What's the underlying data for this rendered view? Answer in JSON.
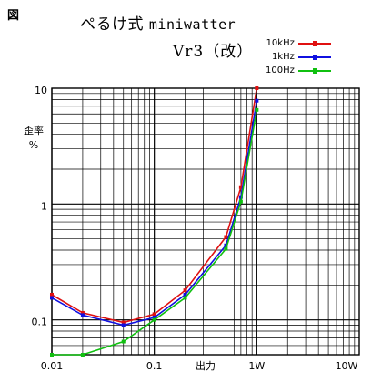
{
  "figure_label": "図",
  "title_line1_prefix": "ぺるけ式",
  "title_line1_mono": "miniwatter",
  "title_line2": "Vr3（改）",
  "chart_data": {
    "type": "line",
    "x_scale": "log",
    "y_scale": "log",
    "xlim": [
      0.01,
      10
    ],
    "ylim": [
      0.05,
      10
    ],
    "xlabel": "出力",
    "ylabel": [
      "歪率",
      "%"
    ],
    "x_tick_labels": [
      {
        "value": 0.01,
        "label": "0.01"
      },
      {
        "value": 0.1,
        "label": "0.1"
      },
      {
        "value": 1,
        "label": "1W"
      },
      {
        "value": 10,
        "label": "10W"
      }
    ],
    "y_tick_labels": [
      {
        "value": 10,
        "label": "10"
      },
      {
        "value": 1,
        "label": "1"
      },
      {
        "value": 0.1,
        "label": "0.1"
      }
    ],
    "grid": true,
    "legend_position": "top-right",
    "series": [
      {
        "name": "10kHz",
        "color": "#e01010",
        "points": [
          [
            0.01,
            0.165
          ],
          [
            0.02,
            0.115
          ],
          [
            0.05,
            0.095
          ],
          [
            0.1,
            0.112
          ],
          [
            0.2,
            0.18
          ],
          [
            0.5,
            0.52
          ],
          [
            0.7,
            1.4
          ],
          [
            1.0,
            10.0
          ]
        ]
      },
      {
        "name": "1kHz",
        "color": "#1010e0",
        "points": [
          [
            0.01,
            0.155
          ],
          [
            0.02,
            0.11
          ],
          [
            0.05,
            0.09
          ],
          [
            0.1,
            0.105
          ],
          [
            0.2,
            0.165
          ],
          [
            0.5,
            0.44
          ],
          [
            0.7,
            1.15
          ],
          [
            1.0,
            7.8
          ]
        ]
      },
      {
        "name": "100Hz",
        "color": "#10c010",
        "points": [
          [
            0.01,
            0.05
          ],
          [
            0.02,
            0.05
          ],
          [
            0.05,
            0.065
          ],
          [
            0.1,
            0.1
          ],
          [
            0.2,
            0.155
          ],
          [
            0.5,
            0.41
          ],
          [
            0.7,
            1.05
          ],
          [
            1.0,
            6.5
          ]
        ]
      }
    ]
  }
}
